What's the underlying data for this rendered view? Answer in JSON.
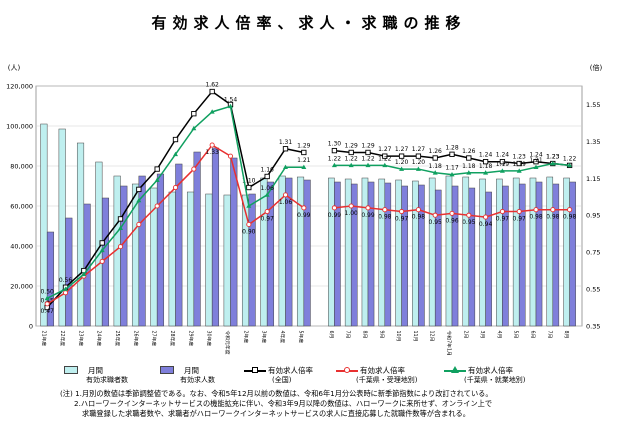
{
  "title": "有効求人倍率、求人・求職の推移",
  "chart_data": {
    "type": "bar",
    "y_left_unit": "(人)",
    "y_right_unit": "(倍)",
    "ylim_left": [
      0,
      120000
    ],
    "ylim_right": [
      0.35,
      1.65
    ],
    "y_left_ticks": [
      "0",
      "20,000",
      "40,000",
      "60,000",
      "80,000",
      "100,000",
      "120,000"
    ],
    "y_right_ticks": [
      "0.35",
      "0.55",
      "0.75",
      "0.95",
      "1.15",
      "1.35",
      "1.55"
    ],
    "group1_categories": [
      "21年度",
      "22年度",
      "23年度",
      "24年度",
      "25年度",
      "26年度",
      "27年度",
      "28年度",
      "29年度",
      "30年度",
      "令和元年度",
      "2年度",
      "3年度",
      "4年度",
      "5年度"
    ],
    "group2_categories": [
      "6月",
      "7月",
      "8月",
      "9月",
      "10月",
      "11月",
      "12月",
      "令和7年1月",
      "2月",
      "3月",
      "4月",
      "5月",
      "6月",
      "7月",
      "8月"
    ],
    "series": [
      {
        "name": "月間有効求職者数",
        "type": "bar",
        "color": "#bfefef",
        "values1": [
          101000,
          98500,
          91500,
          82000,
          75000,
          71000,
          69000,
          67000,
          67000,
          66000,
          65500,
          65500,
          74000,
          75000,
          74500
        ],
        "values2": [
          74000,
          73500,
          74000,
          73500,
          73000,
          72500,
          74000,
          75000,
          74500,
          73500,
          73500,
          74000,
          74000,
          74500,
          74000
        ]
      },
      {
        "name": "月間有効求人数",
        "type": "bar",
        "color": "#7f7fdb",
        "values1": [
          47000,
          54000,
          61000,
          64000,
          70000,
          75000,
          76000,
          81000,
          87000,
          89000,
          84000,
          66000,
          72000,
          74000,
          73000
        ],
        "values2": [
          72000,
          71000,
          72000,
          71500,
          70000,
          70500,
          68000,
          70000,
          69000,
          67000,
          70000,
          71000,
          72000,
          71000,
          72000
        ]
      },
      {
        "name": "有効求人倍率(全国)",
        "type": "line",
        "color": "#000000",
        "marker": "square",
        "values1": [
          0.45,
          0.56,
          0.65,
          0.8,
          0.93,
          1.09,
          1.2,
          1.36,
          1.5,
          1.62,
          1.55,
          1.1,
          1.16,
          1.31,
          1.29
        ],
        "values2": [
          1.3,
          1.29,
          1.29,
          1.27,
          1.27,
          1.27,
          1.26,
          1.28,
          1.26,
          1.24,
          1.24,
          1.23,
          1.24,
          1.23,
          1.22
        ],
        "labels1": {
          "0": "0.45",
          "1": "0.56",
          "9": "1.62",
          "11": "1.10",
          "12": "1.16",
          "13": "1.31",
          "14": "1.29"
        },
        "labels2": {
          "0": "1.30",
          "1": "1.29",
          "2": "1.29",
          "3": "1.27",
          "4": "1.27",
          "5": "1.27",
          "6": "1.26",
          "7": "1.28",
          "8": "1.26",
          "9": "1.24",
          "10": "1.24",
          "11": "1.23",
          "12": "1.24",
          "13": "1.23"
        }
      },
      {
        "name": "有効求人倍率(千葉県・受理地別)",
        "type": "line",
        "color": "#e83030",
        "marker": "circle",
        "values1": [
          0.47,
          0.53,
          0.62,
          0.7,
          0.78,
          0.9,
          1.0,
          1.1,
          1.2,
          1.33,
          1.27,
          0.9,
          0.97,
          1.06,
          0.99
        ],
        "values2": [
          0.99,
          1.0,
          0.99,
          0.98,
          0.97,
          0.98,
          0.95,
          0.96,
          0.95,
          0.94,
          0.97,
          0.97,
          0.98,
          0.98,
          0.98
        ],
        "labels1": {
          "0": "0.47",
          "9": "1.33",
          "11": "0.90",
          "12": "0.97",
          "13": "1.06",
          "14": "0.99"
        },
        "labels2": {
          "0": "0.99",
          "1": "1.00",
          "2": "0.99",
          "3": "0.98",
          "4": "0.97",
          "5": "0.98",
          "6": "0.95",
          "7": "0.96",
          "8": "0.95",
          "9": "0.94",
          "10": "0.97",
          "11": "0.97",
          "12": "0.98",
          "13": "0.98",
          "14": "0.98"
        }
      },
      {
        "name": "有効求人倍率(千葉県・就業地別)",
        "type": "line",
        "color": "#10a060",
        "marker": "triangle",
        "values1": [
          0.5,
          0.55,
          0.63,
          0.76,
          0.88,
          1.03,
          1.14,
          1.28,
          1.42,
          1.51,
          1.54,
          1.0,
          1.06,
          1.21,
          1.21
        ],
        "values2": [
          1.22,
          1.22,
          1.22,
          1.22,
          1.2,
          1.2,
          1.18,
          1.17,
          1.18,
          1.18,
          1.19,
          1.19,
          1.21,
          1.23,
          1.22
        ],
        "labels1": {
          "0": "0.50",
          "10": "1.54",
          "12": "1.06",
          "14": "1.21"
        },
        "labels2": {
          "0": "1.22",
          "1": "1.22",
          "2": "1.22",
          "3": "1.22",
          "4": "1.20",
          "5": "1.20",
          "6": "1.18",
          "7": "1.17",
          "8": "1.18",
          "9": "1.18",
          "10": "1.19",
          "11": "1.19",
          "12": "1.21",
          "13": "1.23",
          "14": "1.22"
        }
      }
    ]
  },
  "legend": {
    "item1": {
      "line1": "月間",
      "line2": "有効求職者数"
    },
    "item2": {
      "line1": "月間",
      "line2": "有効求人数"
    },
    "item3": {
      "line1": "有効求人倍率",
      "line2": "(全国)"
    },
    "item4": {
      "line1": "有効求人倍率",
      "line2": "(千葉県・受理地別)"
    },
    "item5": {
      "line1": "有効求人倍率",
      "line2": "(千葉県・就業地別)"
    }
  },
  "notes": {
    "line1": "(注) 1.月別の数値は季節調整値である。なお、令和5年12月以前の数値は、令和6年1月分公表時に新季節指数により改訂されている。",
    "line2": "2.ハローワークインターネットサービスの機能拡充に伴い、令和3年9月以降の数値は、ハローワークに来所せず、オンライン上で",
    "line3": "求職登録した求職者数や、求職者がハローワークインターネットサービスの求人に直接応募した就職件数等が含まれる。"
  }
}
